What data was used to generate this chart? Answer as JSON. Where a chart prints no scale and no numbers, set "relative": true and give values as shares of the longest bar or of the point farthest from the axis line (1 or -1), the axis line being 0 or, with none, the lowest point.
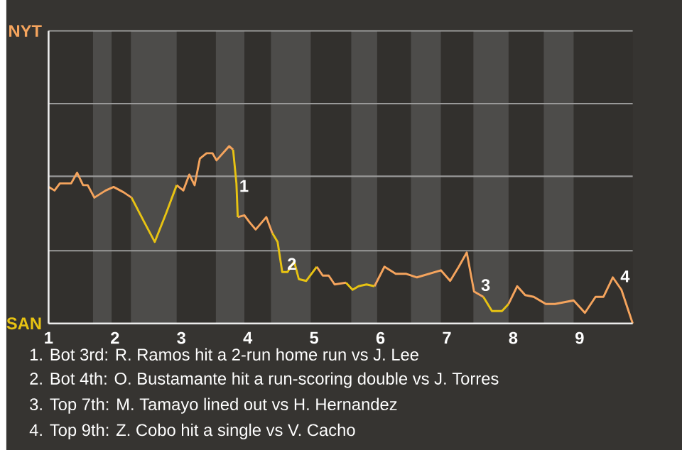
{
  "chart_data": {
    "type": "line",
    "relative": true,
    "x": [
      1.0,
      1.09,
      1.17,
      1.34,
      1.43,
      1.52,
      1.59,
      1.69,
      1.86,
      1.98,
      2.13,
      2.25,
      2.43,
      2.6,
      2.77,
      2.93,
      3.03,
      3.12,
      3.2,
      3.28,
      3.38,
      3.47,
      3.53,
      3.72,
      3.78,
      3.83,
      3.85,
      3.95,
      4.03,
      4.12,
      4.28,
      4.37,
      4.45,
      4.52,
      4.6,
      4.7,
      4.77,
      4.88,
      5.04,
      5.13,
      5.22,
      5.31,
      5.48,
      5.58,
      5.67,
      5.79,
      5.91,
      6.06,
      6.23,
      6.39,
      6.55,
      6.91,
      7.05,
      7.18,
      7.3,
      7.41,
      7.55,
      7.68,
      7.83,
      7.93,
      8.06,
      8.18,
      8.31,
      8.49,
      8.63,
      8.91,
      9.08,
      9.24,
      9.36,
      9.5,
      9.63,
      9.8
    ],
    "series": [
      {
        "name": "NYT",
        "color": "#f5a45d",
        "values": [
          0.77,
          0.75,
          0.79,
          0.79,
          0.85,
          0.78,
          0.78,
          0.71,
          0.75,
          0.77,
          0.74,
          0.71,
          null,
          null,
          null,
          0.78,
          0.75,
          0.84,
          0.78,
          0.93,
          0.96,
          0.96,
          0.92,
          1,
          0.98,
          null,
          0.6,
          0.61,
          0.57,
          0.53,
          0.6,
          0.51,
          null,
          null,
          null,
          null,
          null,
          null,
          0.32,
          0.27,
          0.27,
          0.22,
          0.23,
          null,
          null,
          null,
          0.21,
          0.32,
          0.28,
          0.28,
          0.26,
          0.3,
          0.24,
          0.32,
          0.4,
          0.18,
          0.15,
          null,
          null,
          0.11,
          0.21,
          0.16,
          0.15,
          0.11,
          0.11,
          0.13,
          0.06,
          0.15,
          0.15,
          0.26,
          0.19,
          0
        ]
      },
      {
        "name": "SAN",
        "color": "#e8c312",
        "values": [
          null,
          null,
          null,
          null,
          null,
          null,
          null,
          null,
          null,
          null,
          null,
          0.71,
          0.58,
          0.46,
          0.62,
          0.78,
          null,
          null,
          null,
          null,
          null,
          null,
          null,
          null,
          0.98,
          0.79,
          0.6,
          null,
          null,
          null,
          null,
          0.51,
          0.46,
          0.29,
          0.29,
          0.35,
          0.25,
          0.24,
          0.32,
          null,
          null,
          null,
          0.23,
          0.19,
          0.21,
          0.22,
          0.21,
          null,
          null,
          null,
          null,
          null,
          null,
          null,
          null,
          null,
          0.15,
          0.07,
          0.07,
          0.11,
          null,
          null,
          null,
          null,
          null,
          null,
          null,
          null,
          null,
          null,
          null,
          null
        ]
      }
    ],
    "xlim": [
      1,
      9.8
    ],
    "xticks": [
      1,
      2,
      3,
      4,
      5,
      6,
      7,
      8,
      9
    ],
    "ref_lines": [
      {
        "axis": "y",
        "value": 0.41,
        "color": "#999999"
      },
      {
        "axis": "y",
        "value": 0.83,
        "color": "#999999"
      },
      {
        "axis": "y",
        "value": 1.24,
        "color": "#999999"
      },
      {
        "axis": "y",
        "value": 1.65,
        "color": "#999999"
      }
    ],
    "marker": "none",
    "line_style": "solid",
    "bands": [
      {
        "axis": "x",
        "from": 1.67,
        "to": 1.95,
        "color": "#4d4c4a"
      },
      {
        "axis": "x",
        "from": 2.24,
        "to": 2.93,
        "color": "#4d4c4a"
      },
      {
        "axis": "x",
        "from": 3.52,
        "to": 3.95,
        "color": "#4d4c4a"
      },
      {
        "axis": "x",
        "from": 4.35,
        "to": 4.95,
        "color": "#4d4c4a"
      },
      {
        "axis": "x",
        "from": 5.56,
        "to": 5.95,
        "color": "#4d4c4a"
      },
      {
        "axis": "x",
        "from": 6.46,
        "to": 6.91,
        "color": "#4d4c4a"
      },
      {
        "axis": "x",
        "from": 7.4,
        "to": 7.93,
        "color": "#4d4c4a"
      },
      {
        "axis": "x",
        "from": 8.46,
        "to": 8.91,
        "color": "#4d4c4a"
      }
    ],
    "annotations": [
      {
        "text": "1",
        "x": 3.84,
        "y": 0.73
      },
      {
        "text": "2",
        "x": 4.56,
        "y": 0.29
      },
      {
        "text": "3",
        "x": 7.48,
        "y": 0.17
      },
      {
        "text": "4",
        "x": 9.58,
        "y": 0.22
      },
      "1. Bot 3rd: R. Ramos hit a 2-run home run vs J. Lee",
      "2. Bot 4th: O. Bustamante hit a run-scoring double vs J. Torres",
      "3. Top 7th: M. Tamayo lined out vs H. Hernandez",
      "4. Top 9th: Z. Cobo hit a single vs V. Cacho"
    ]
  }
}
